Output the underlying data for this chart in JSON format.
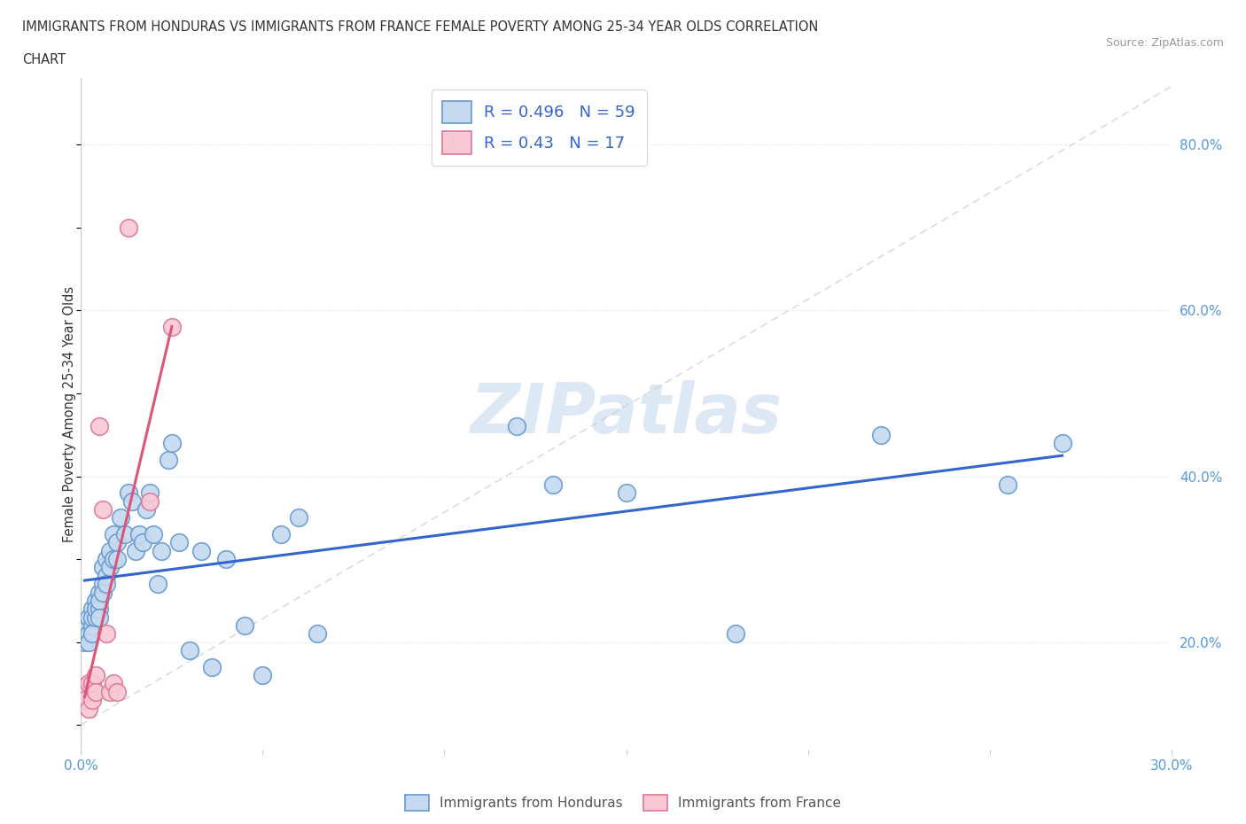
{
  "title_line1": "IMMIGRANTS FROM HONDURAS VS IMMIGRANTS FROM FRANCE FEMALE POVERTY AMONG 25-34 YEAR OLDS CORRELATION",
  "title_line2": "CHART",
  "source_text": "Source: ZipAtlas.com",
  "ylabel": "Female Poverty Among 25-34 Year Olds",
  "xlim": [
    0.0,
    0.3
  ],
  "ylim": [
    0.07,
    0.88
  ],
  "x_ticks": [
    0.0,
    0.05,
    0.1,
    0.15,
    0.2,
    0.25,
    0.3
  ],
  "y_ticks_right": [
    0.2,
    0.4,
    0.6,
    0.8
  ],
  "y_tick_labels_right": [
    "20.0%",
    "40.0%",
    "60.0%",
    "80.0%"
  ],
  "R_honduras": 0.496,
  "N_honduras": 59,
  "R_france": 0.43,
  "N_france": 17,
  "color_honduras_face": "#c5d9f0",
  "color_honduras_edge": "#6699cc",
  "color_france_face": "#f8c8d4",
  "color_france_edge": "#dd7799",
  "color_line_honduras": "#3366cc",
  "color_line_france": "#dd5577",
  "watermark": "ZIPatlas",
  "watermark_color": "#dde8f5",
  "title_color": "#333333",
  "source_color": "#999999",
  "axis_label_color": "#333333",
  "tick_label_color": "#5599dd",
  "grid_color": "#dddddd",
  "spine_color": "#cccccc",
  "diag_color": "#cccccc",
  "honduras_x": [
    0.001,
    0.001,
    0.002,
    0.002,
    0.002,
    0.003,
    0.003,
    0.003,
    0.003,
    0.004,
    0.004,
    0.004,
    0.005,
    0.005,
    0.005,
    0.005,
    0.006,
    0.006,
    0.006,
    0.007,
    0.007,
    0.007,
    0.008,
    0.008,
    0.009,
    0.009,
    0.01,
    0.01,
    0.011,
    0.012,
    0.013,
    0.014,
    0.015,
    0.016,
    0.017,
    0.018,
    0.019,
    0.02,
    0.021,
    0.022,
    0.024,
    0.025,
    0.027,
    0.03,
    0.033,
    0.036,
    0.04,
    0.045,
    0.05,
    0.055,
    0.06,
    0.065,
    0.12,
    0.13,
    0.15,
    0.18,
    0.22,
    0.255,
    0.27
  ],
  "honduras_y": [
    0.22,
    0.2,
    0.21,
    0.23,
    0.2,
    0.24,
    0.22,
    0.23,
    0.21,
    0.25,
    0.23,
    0.24,
    0.26,
    0.24,
    0.25,
    0.23,
    0.27,
    0.29,
    0.26,
    0.3,
    0.28,
    0.27,
    0.31,
    0.29,
    0.33,
    0.3,
    0.32,
    0.3,
    0.35,
    0.33,
    0.38,
    0.37,
    0.31,
    0.33,
    0.32,
    0.36,
    0.38,
    0.33,
    0.27,
    0.31,
    0.42,
    0.44,
    0.32,
    0.19,
    0.31,
    0.17,
    0.3,
    0.22,
    0.16,
    0.33,
    0.35,
    0.21,
    0.46,
    0.39,
    0.38,
    0.21,
    0.45,
    0.39,
    0.44
  ],
  "france_x": [
    0.001,
    0.001,
    0.002,
    0.002,
    0.003,
    0.003,
    0.004,
    0.004,
    0.005,
    0.006,
    0.007,
    0.008,
    0.009,
    0.01,
    0.013,
    0.019,
    0.025
  ],
  "france_y": [
    0.14,
    0.13,
    0.15,
    0.12,
    0.15,
    0.13,
    0.16,
    0.14,
    0.46,
    0.36,
    0.21,
    0.14,
    0.15,
    0.14,
    0.7,
    0.37,
    0.58
  ],
  "legend_R_color": "#3366cc",
  "legend_N_color": "#3366cc",
  "bottom_legend_color": "#555555"
}
